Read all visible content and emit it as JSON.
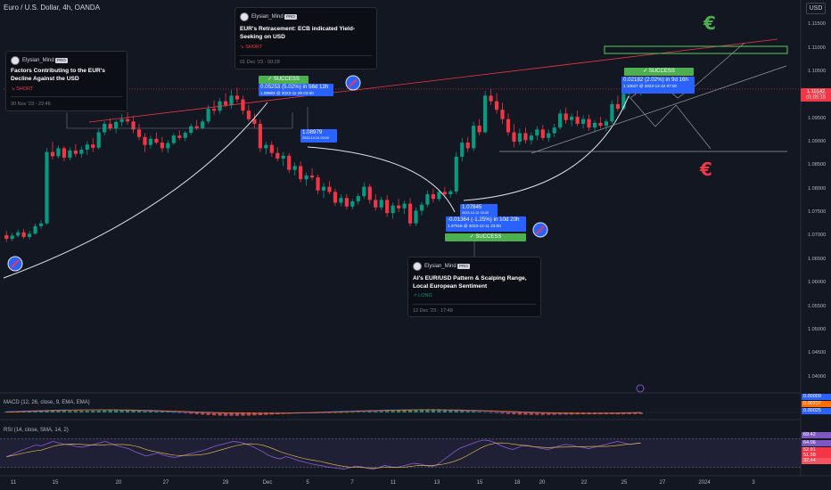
{
  "symbol": {
    "title": "Euro / U.S. Dollar, 4h, OANDA"
  },
  "currency_button": "USD",
  "price_axis": {
    "labels": [
      "1.11500",
      "1.11000",
      "1.10500",
      "1.10000",
      "1.09500",
      "1.09000",
      "1.08500",
      "1.08000",
      "1.07500",
      "1.07000",
      "1.06500",
      "1.06000",
      "1.05500",
      "1.05000",
      "1.04500",
      "1.04000"
    ],
    "current_price": "1.10142",
    "countdown": "01:05:19"
  },
  "time_axis": {
    "labels": [
      "11",
      "15",
      "20",
      "27",
      "29",
      "Dec",
      "5",
      "7",
      "11",
      "13",
      "15",
      "18",
      "20",
      "22",
      "25",
      "27",
      "2024",
      "3"
    ]
  },
  "chart_data": {
    "type": "candlestick",
    "ylim": [
      1.0367,
      1.1198
    ],
    "ohlc": [
      [
        1.0703,
        1.0712,
        1.0688,
        1.0695
      ],
      [
        1.0695,
        1.0708,
        1.069,
        1.0702
      ],
      [
        1.0702,
        1.0715,
        1.0698,
        1.0709
      ],
      [
        1.0709,
        1.0716,
        1.0695,
        1.0699
      ],
      [
        1.0699,
        1.0712,
        1.0694,
        1.0706
      ],
      [
        1.0706,
        1.0728,
        1.0704,
        1.0722
      ],
      [
        1.0722,
        1.0735,
        1.0716,
        1.0728
      ],
      [
        1.0728,
        1.0888,
        1.0725,
        1.088
      ],
      [
        1.088,
        1.0902,
        1.0864,
        1.0871
      ],
      [
        1.0871,
        1.0894,
        1.0866,
        1.0888
      ],
      [
        1.0888,
        1.0893,
        1.086,
        1.0868
      ],
      [
        1.0868,
        1.089,
        1.0862,
        1.0883
      ],
      [
        1.0883,
        1.0897,
        1.087,
        1.0876
      ],
      [
        1.0876,
        1.0892,
        1.0868,
        1.0885
      ],
      [
        1.0885,
        1.0903,
        1.0874,
        1.0896
      ],
      [
        1.0896,
        1.091,
        1.088,
        1.0889
      ],
      [
        1.0889,
        1.093,
        1.0885,
        1.0922
      ],
      [
        1.0922,
        1.0946,
        1.0915,
        1.094
      ],
      [
        1.094,
        1.0952,
        1.0925,
        1.093
      ],
      [
        1.093,
        1.0948,
        1.092,
        1.0944
      ],
      [
        1.0944,
        1.096,
        1.0935,
        1.095
      ],
      [
        1.095,
        1.0965,
        1.0938,
        1.0945
      ],
      [
        1.0945,
        1.0957,
        1.092,
        1.0928
      ],
      [
        1.0928,
        1.094,
        1.0905,
        1.0912
      ],
      [
        1.0912,
        1.092,
        1.088,
        1.0895
      ],
      [
        1.0895,
        1.0915,
        1.0888,
        1.0908
      ],
      [
        1.0908,
        1.0922,
        1.0896,
        1.09
      ],
      [
        1.09,
        1.0912,
        1.088,
        1.0888
      ],
      [
        1.0888,
        1.0905,
        1.0878,
        1.0899
      ],
      [
        1.0899,
        1.092,
        1.0895,
        1.0915
      ],
      [
        1.0915,
        1.0926,
        1.0905,
        1.091
      ],
      [
        1.091,
        1.0925,
        1.0903,
        1.0921
      ],
      [
        1.0921,
        1.094,
        1.0916,
        1.0935
      ],
      [
        1.0935,
        1.0948,
        1.0926,
        1.0931
      ],
      [
        1.0931,
        1.095,
        1.0928,
        1.0945
      ],
      [
        1.0945,
        1.098,
        1.094,
        1.0972
      ],
      [
        1.0972,
        1.099,
        1.096,
        1.0968
      ],
      [
        1.0968,
        1.0995,
        1.0962,
        1.0988
      ],
      [
        1.0988,
        1.1005,
        1.0975,
        1.098
      ],
      [
        1.098,
        1.1012,
        1.0972,
        1.1
      ],
      [
        1.1,
        1.1017,
        1.0985,
        1.0992
      ],
      [
        1.0992,
        1.1,
        1.096,
        1.0968
      ],
      [
        1.0968,
        1.098,
        1.0945,
        1.095
      ],
      [
        1.095,
        1.0962,
        1.093,
        1.094
      ],
      [
        1.094,
        1.095,
        1.088,
        1.0888
      ],
      [
        1.0888,
        1.0902,
        1.0875,
        1.0895
      ],
      [
        1.0895,
        1.0903,
        1.087,
        1.0878
      ],
      [
        1.0878,
        1.089,
        1.086,
        1.0866
      ],
      [
        1.0866,
        1.088,
        1.085,
        1.0872
      ],
      [
        1.0872,
        1.0878,
        1.0835,
        1.0842
      ],
      [
        1.0842,
        1.0858,
        1.083,
        1.085
      ],
      [
        1.085,
        1.086,
        1.0815,
        1.0822
      ],
      [
        1.0822,
        1.0836,
        1.0808,
        1.083
      ],
      [
        1.083,
        1.0845,
        1.082,
        1.0826
      ],
      [
        1.0826,
        1.0832,
        1.079,
        1.0798
      ],
      [
        1.0798,
        1.0814,
        1.0782,
        1.0806
      ],
      [
        1.0806,
        1.0818,
        1.079,
        1.0795
      ],
      [
        1.0795,
        1.0802,
        1.0765,
        1.0772
      ],
      [
        1.0772,
        1.079,
        1.0765,
        1.0782
      ],
      [
        1.0782,
        1.079,
        1.0758,
        1.0764
      ],
      [
        1.0764,
        1.078,
        1.0758,
        1.0775
      ],
      [
        1.0775,
        1.0792,
        1.0768,
        1.0786
      ],
      [
        1.0786,
        1.0815,
        1.078,
        1.0806
      ],
      [
        1.0806,
        1.0812,
        1.077,
        1.0778
      ],
      [
        1.0778,
        1.079,
        1.0755,
        1.0762
      ],
      [
        1.0762,
        1.0785,
        1.0756,
        1.0778
      ],
      [
        1.0778,
        1.0788,
        1.0742,
        1.075
      ],
      [
        1.075,
        1.0772,
        1.0738,
        1.0766
      ],
      [
        1.0766,
        1.078,
        1.0752,
        1.076
      ],
      [
        1.076,
        1.0776,
        1.0748,
        1.077
      ],
      [
        1.077,
        1.0782,
        1.0722,
        1.0728
      ],
      [
        1.0728,
        1.0762,
        1.0722,
        1.0755
      ],
      [
        1.0755,
        1.0774,
        1.0745,
        1.0768
      ],
      [
        1.0768,
        1.0798,
        1.0762,
        1.079
      ],
      [
        1.079,
        1.0802,
        1.0772,
        1.078
      ],
      [
        1.078,
        1.08,
        1.0775,
        1.0795
      ],
      [
        1.0795,
        1.0805,
        1.0785,
        1.079
      ],
      [
        1.079,
        1.08,
        1.0783,
        1.0796
      ],
      [
        1.0796,
        1.088,
        1.079,
        1.087
      ],
      [
        1.087,
        1.091,
        1.086,
        1.09
      ],
      [
        1.09,
        1.0912,
        1.088,
        1.0888
      ],
      [
        1.0888,
        1.0945,
        1.0882,
        1.0936
      ],
      [
        1.0936,
        1.095,
        1.0915,
        1.0922
      ],
      [
        1.0922,
        1.101,
        1.092,
        1.1
      ],
      [
        1.1,
        1.1015,
        1.098,
        1.0988
      ],
      [
        1.0988,
        1.1005,
        1.0962,
        1.097
      ],
      [
        1.097,
        1.0985,
        1.094,
        1.095
      ],
      [
        1.095,
        1.0962,
        1.0915,
        1.0922
      ],
      [
        1.0922,
        1.094,
        1.089,
        1.0902
      ],
      [
        1.0902,
        1.093,
        1.0895,
        1.092
      ],
      [
        1.092,
        1.0932,
        1.0898,
        1.0905
      ],
      [
        1.0905,
        1.0922,
        1.0896,
        1.0915
      ],
      [
        1.0915,
        1.0935,
        1.0905,
        1.0928
      ],
      [
        1.0928,
        1.0938,
        1.0905,
        1.091
      ],
      [
        1.091,
        1.0928,
        1.0902,
        1.092
      ],
      [
        1.092,
        1.094,
        1.0912,
        1.0932
      ],
      [
        1.0932,
        1.097,
        1.0928,
        1.0962
      ],
      [
        1.0962,
        1.0975,
        1.094,
        1.0948
      ],
      [
        1.0948,
        1.0962,
        1.0935,
        1.0955
      ],
      [
        1.0955,
        1.0968,
        1.0935,
        1.094
      ],
      [
        1.094,
        1.0958,
        1.093,
        1.095
      ],
      [
        1.095,
        1.096,
        1.0925,
        1.0932
      ],
      [
        1.0932,
        1.0948,
        1.0922,
        1.0942
      ],
      [
        1.0942,
        1.0955,
        1.093,
        1.0936
      ],
      [
        1.0936,
        1.095,
        1.0924,
        1.0945
      ],
      [
        1.0945,
        1.099,
        1.094,
        1.0982
      ],
      [
        1.0982,
        1.1,
        1.0966,
        1.0972
      ],
      [
        1.0972,
        1.101,
        1.0968,
        1.1004
      ],
      [
        1.1004,
        1.1025,
        1.0995,
        1.1018
      ],
      [
        1.1018,
        1.103,
        1.1,
        1.1008
      ],
      [
        1.1008,
        1.1022,
        1.1,
        1.1014
      ]
    ],
    "macd": {
      "label": "MACD (12, 26, close, 9, EMA, EMA)",
      "values": [
        "0.00009",
        "0.00237",
        "0.00025"
      ],
      "colors": [
        "#2962ff",
        "#ff6d00",
        "#ef5350"
      ]
    },
    "rsi": {
      "label": "RSI (14, close, SMA, 14, 2)",
      "values": [
        "69.42",
        "64.06",
        "52.91",
        "51.58",
        "32.44"
      ],
      "colors": [
        "#7e57c2",
        "#7e57c2",
        "#f23645",
        "#f23645",
        "#f7525f"
      ],
      "ylim": [
        20,
        85
      ],
      "series": [
        45,
        48,
        52,
        55,
        58,
        61,
        60,
        63,
        66,
        64,
        62,
        61,
        59,
        58,
        60,
        62,
        64,
        66,
        63,
        60,
        58,
        56,
        52,
        49,
        46,
        48,
        50,
        47,
        45,
        44,
        46,
        48,
        50,
        52,
        54,
        57,
        60,
        62,
        64,
        66,
        65,
        63,
        60,
        56,
        52,
        47,
        44,
        42,
        45,
        43,
        40,
        38,
        36,
        34,
        33,
        31,
        30,
        29,
        28,
        30,
        32,
        31,
        29,
        28,
        30,
        33,
        31,
        30,
        32,
        34,
        36,
        35,
        33,
        31,
        34,
        40,
        46,
        52,
        57,
        60,
        63,
        66,
        68,
        67,
        64,
        60,
        57,
        55,
        58,
        61,
        60,
        58,
        56,
        55,
        57,
        60,
        62,
        61,
        59,
        58,
        56,
        58,
        60,
        62,
        64,
        66,
        64,
        62,
        63,
        64
      ]
    }
  },
  "ideas": [
    {
      "author": "Elysian_Mind",
      "badge": "PRO",
      "title": "Factors Contributing to the EUR's Decline Against the USD",
      "direction": "↘ SHORT",
      "date": "30 Nov '23 - 22:46"
    },
    {
      "author": "Elysian_Mind",
      "badge": "PRO",
      "title": "EUR's Retracement: ECB indicated Yield-Seeking on USD",
      "direction": "↘ SHORT",
      "date": "01 Dec '23 - 00:28"
    },
    {
      "author": "Elysian_Mind",
      "badge": "PRO",
      "title": "AI's EUR/USD Pattern & Scalping Range, Local European Sentiment",
      "direction": "↗ LONG",
      "date": "12 Dec '23 - 17:48"
    }
  ],
  "results": [
    {
      "status": "✓ SUCCESS",
      "line1": "0.05253 (5.02%) in 56d 12h",
      "line2": "1.09883 @ 2023-11-29 03:00"
    },
    {
      "status": "",
      "line1": "1.08979",
      "line2": "2023-12-01 03:00"
    },
    {
      "status": "✓ SUCCESS",
      "line1": "1.07845",
      "line2": "2023-12-12 15:00",
      "line3": "-0.01364 (-1.25%) in 10d 20h",
      "line4": "1.07616 @ 2023-12-11 23:00"
    },
    {
      "status": "✓ SUCCESS",
      "line1": "0.02182 (2.02%) in 9d 16h",
      "line2": "1.10027 @ 2023-12-22 07:00"
    }
  ],
  "symbols": {
    "euro_glyph": "€",
    "colors": {
      "up": "#089981",
      "down": "#f23645",
      "success": "#4caf50",
      "info": "#2962ff"
    }
  }
}
